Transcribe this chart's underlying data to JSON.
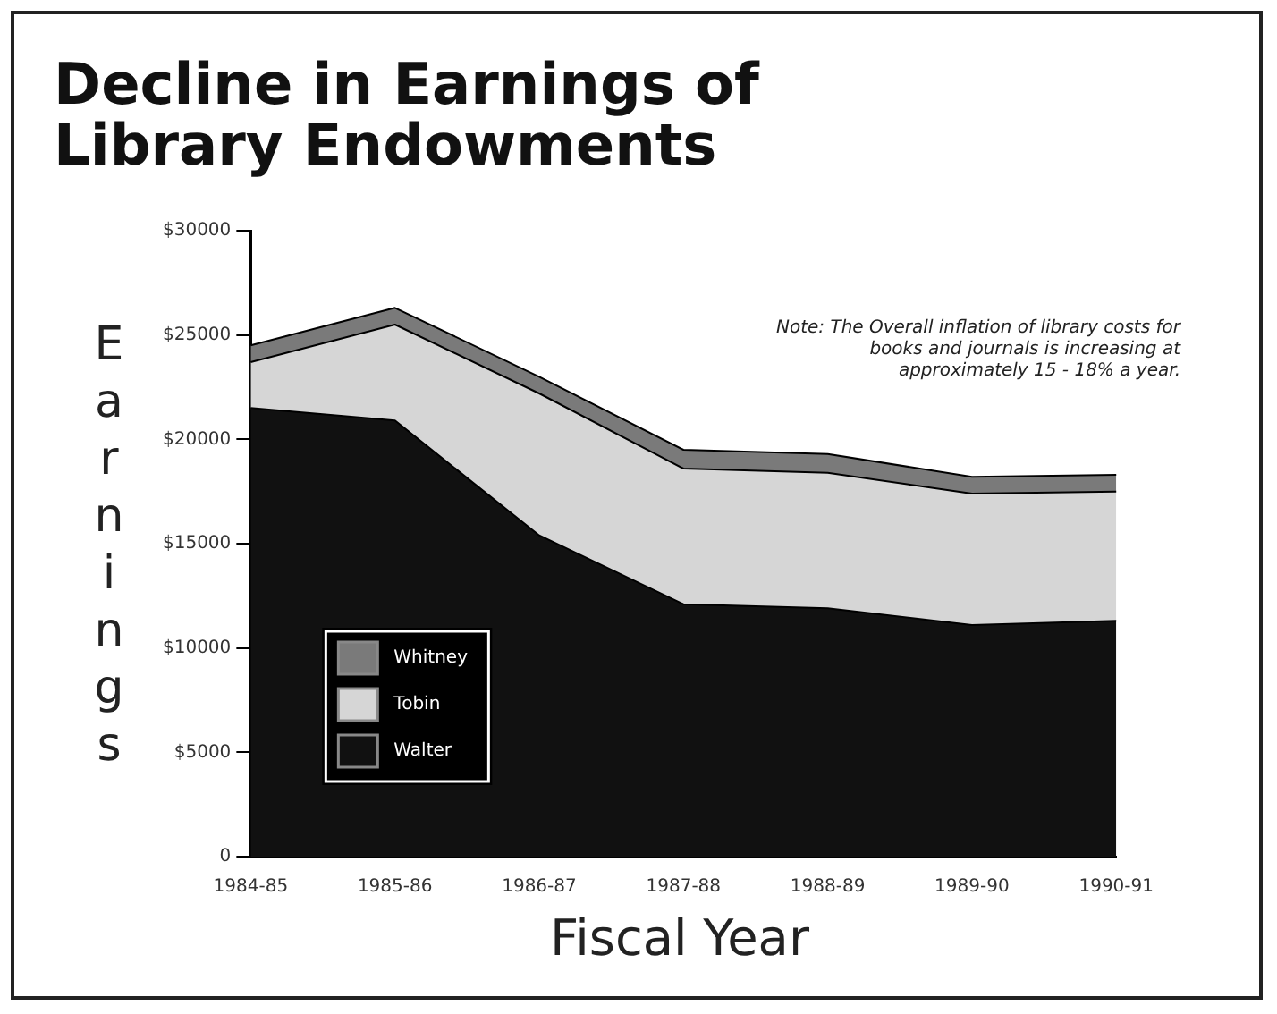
{
  "chart_data": {
    "type": "area",
    "stacked": true,
    "title": "Decline in Earnings of Library Endowments",
    "xlabel": "Fiscal Year",
    "ylabel": "Earnings",
    "annotations": [
      "Note: The Overall inflation of library costs for books and journals is increasing at approximately 15 - 18% a year."
    ],
    "categories": [
      "1984-85",
      "1985-86",
      "1986-87",
      "1987-88",
      "1988-89",
      "1989-90",
      "1990-91"
    ],
    "series": [
      {
        "name": "Walter",
        "color": "#111111",
        "values": [
          21500,
          20900,
          15400,
          12100,
          11900,
          11100,
          11300
        ]
      },
      {
        "name": "Tobin",
        "color": "#d6d6d6",
        "values": [
          2200,
          4600,
          6800,
          6500,
          6500,
          6300,
          6200
        ]
      },
      {
        "name": "Whitney",
        "color": "#7a7a7a",
        "values": [
          800,
          800,
          800,
          900,
          900,
          800,
          800
        ]
      }
    ],
    "ylim": [
      0,
      30000
    ],
    "yticks": [
      {
        "value": 0,
        "label": "0"
      },
      {
        "value": 5000,
        "label": "$5000"
      },
      {
        "value": 10000,
        "label": "$10000"
      },
      {
        "value": 15000,
        "label": "$15000"
      },
      {
        "value": 20000,
        "label": "$20000"
      },
      {
        "value": 25000,
        "label": "$25000"
      },
      {
        "value": 30000,
        "label": "$30000"
      }
    ],
    "grid": false,
    "legend": "bottom left",
    "marker": "none"
  }
}
